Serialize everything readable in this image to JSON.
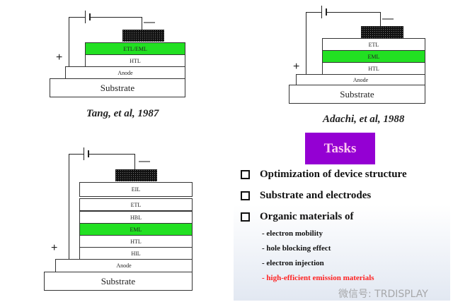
{
  "diagram1": {
    "caption": "Tang, et al, 1987",
    "plus": "+",
    "minus": "—",
    "layers": [
      "ETL/EML",
      "HTL",
      "Anode",
      "Substrate"
    ]
  },
  "diagram2": {
    "caption": "Adachi, et al, 1988",
    "plus": "+",
    "minus": "—",
    "layers": [
      "ETL",
      "EML",
      "HTL",
      "Anode",
      "Substrate"
    ]
  },
  "diagram3": {
    "plus": "+",
    "minus": "—",
    "layers": [
      "EIL",
      "ETL",
      "HBL",
      "EML",
      "HTL",
      "HIL",
      "Anode",
      "Substrate"
    ]
  },
  "tasks": {
    "title": "Tasks",
    "bullets": [
      "Optimization of device structure",
      "Substrate and electrodes",
      "Organic materials of"
    ],
    "items": [
      "- electron mobility",
      "- hole blocking effect",
      "- electron injection",
      "- high-efficient emission materials"
    ]
  },
  "watermark": "微信号: TRDISPLAY",
  "colors": {
    "emission_layer": "#22e022",
    "tasks_box": "#9400d3",
    "highlight": "#ff2222"
  }
}
